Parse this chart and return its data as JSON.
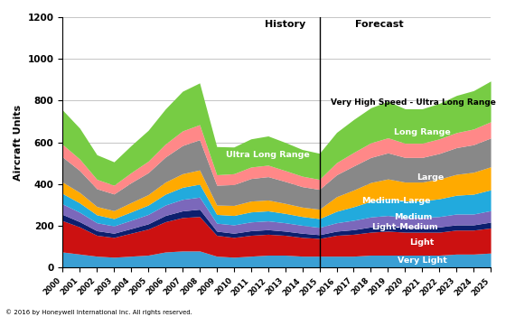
{
  "years": [
    2000,
    2001,
    2002,
    2003,
    2004,
    2005,
    2006,
    2007,
    2008,
    2009,
    2010,
    2011,
    2012,
    2013,
    2014,
    2015,
    2016,
    2017,
    2018,
    2019,
    2020,
    2021,
    2022,
    2023,
    2024,
    2025
  ],
  "series": {
    "Very Light": [
      75,
      65,
      55,
      50,
      55,
      60,
      75,
      80,
      80,
      55,
      50,
      55,
      60,
      60,
      55,
      55,
      55,
      55,
      60,
      60,
      60,
      60,
      60,
      65,
      65,
      70
    ],
    "Light": [
      150,
      130,
      100,
      95,
      110,
      125,
      145,
      160,
      165,
      100,
      95,
      100,
      100,
      95,
      90,
      85,
      100,
      105,
      110,
      115,
      110,
      110,
      110,
      115,
      115,
      120
    ],
    "Light-Medium": [
      30,
      25,
      22,
      20,
      22,
      25,
      30,
      32,
      35,
      20,
      20,
      22,
      22,
      20,
      20,
      18,
      20,
      22,
      25,
      25,
      22,
      22,
      25,
      25,
      25,
      28
    ],
    "Medium": [
      50,
      45,
      38,
      35,
      40,
      45,
      50,
      55,
      58,
      38,
      40,
      42,
      42,
      40,
      38,
      35,
      40,
      45,
      48,
      50,
      48,
      48,
      50,
      52,
      52,
      55
    ],
    "Medium-Large": [
      50,
      45,
      38,
      35,
      40,
      45,
      52,
      58,
      62,
      42,
      45,
      48,
      48,
      45,
      42,
      42,
      55,
      65,
      75,
      80,
      80,
      80,
      85,
      90,
      95,
      100
    ],
    "Large": [
      55,
      50,
      40,
      38,
      45,
      50,
      58,
      65,
      68,
      45,
      48,
      52,
      52,
      48,
      45,
      45,
      70,
      80,
      90,
      95,
      90,
      90,
      95,
      100,
      105,
      110
    ],
    "Ultra Long Range": [
      120,
      105,
      85,
      80,
      95,
      105,
      120,
      135,
      145,
      95,
      100,
      108,
      112,
      105,
      98,
      95,
      105,
      115,
      120,
      125,
      118,
      118,
      122,
      128,
      132,
      138
    ],
    "Long Range": [
      60,
      55,
      45,
      42,
      48,
      55,
      62,
      70,
      72,
      50,
      52,
      55,
      55,
      52,
      50,
      48,
      58,
      65,
      70,
      72,
      68,
      68,
      70,
      72,
      75,
      78
    ],
    "Very High Speed - Ultra Long Range": [
      165,
      148,
      118,
      112,
      130,
      148,
      168,
      190,
      200,
      135,
      128,
      135,
      140,
      135,
      128,
      125,
      145,
      158,
      168,
      175,
      165,
      165,
      170,
      178,
      184,
      195
    ]
  },
  "colors": {
    "Very Light": "#3A9FD4",
    "Light": "#CC1111",
    "Light-Medium": "#0D1F6E",
    "Medium": "#7B68BB",
    "Medium-Large": "#22AADD",
    "Large": "#FFAA00",
    "Ultra Long Range": "#888888",
    "Long Range": "#FF8888",
    "Very High Speed - Ultra Long Range": "#77CC44"
  },
  "ylabel": "Aircraft Units",
  "ylim": [
    0,
    1200
  ],
  "yticks": [
    0,
    200,
    400,
    600,
    800,
    1000,
    1200
  ],
  "history_label": "History",
  "forecast_label": "Forecast",
  "divider_year": 2015,
  "footer": "© 2016 by Honeywell International Inc. All rights reserved.",
  "bg_color": "#FFFFFF",
  "grid_color": "#BBBBBB"
}
